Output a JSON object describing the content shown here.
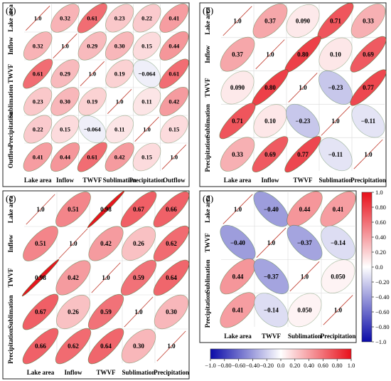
{
  "chart_data": [
    {
      "type": "heatmap",
      "panel": "(a)",
      "variables": [
        "Lake area",
        "Inflow",
        "TWVF",
        "Sublimation",
        "Precipitation",
        "Outflow"
      ],
      "matrix": [
        [
          1.0,
          0.32,
          0.61,
          0.23,
          0.22,
          0.41
        ],
        [
          0.32,
          1.0,
          0.29,
          0.3,
          0.15,
          0.44
        ],
        [
          0.61,
          0.29,
          1.0,
          0.19,
          -0.064,
          0.61
        ],
        [
          0.23,
          0.3,
          0.19,
          1.0,
          0.11,
          0.42
        ],
        [
          0.22,
          0.15,
          -0.064,
          0.11,
          1.0,
          0.15
        ],
        [
          0.41,
          0.44,
          0.61,
          0.42,
          0.15,
          1.0
        ]
      ],
      "labels": [
        [
          "1.0",
          "0.32",
          "0.61",
          "0.23",
          "0.22",
          "0.41"
        ],
        [
          "0.32",
          "1.0",
          "0.29",
          "0.30",
          "0.15",
          "0.44"
        ],
        [
          "0.61",
          "0.29",
          "1.0",
          "0.19",
          "−0.064",
          "0.61"
        ],
        [
          "0.23",
          "0.30",
          "0.19",
          "1.0",
          "0.11",
          "0.42"
        ],
        [
          "0.22",
          "0.15",
          "−0.064",
          "0.11",
          "1.0",
          "0.15"
        ],
        [
          "0.41",
          "0.44",
          "0.61",
          "0.42",
          "0.15",
          "1.0"
        ]
      ],
      "diagonal_style": "line"
    },
    {
      "type": "heatmap",
      "panel": "(b)",
      "variables": [
        "Lake area",
        "Inflow",
        "TWVF",
        "Sublimation",
        "Precipitation"
      ],
      "matrix": [
        [
          1.0,
          0.37,
          0.09,
          0.71,
          0.33
        ],
        [
          0.37,
          1.0,
          0.8,
          0.1,
          0.69
        ],
        [
          0.09,
          0.8,
          1.0,
          -0.23,
          0.77
        ],
        [
          0.71,
          0.1,
          -0.23,
          1.0,
          -0.11
        ],
        [
          0.33,
          0.69,
          0.77,
          -0.11,
          1.0
        ]
      ],
      "labels": [
        [
          "1.0",
          "0.37",
          "0.090",
          "0.71",
          "0.33"
        ],
        [
          "0.37",
          "1.0",
          "0.80",
          "0.10",
          "0.69"
        ],
        [
          "0.090",
          "0.80",
          "1.0",
          "−0.23",
          "0.77"
        ],
        [
          "0.71",
          "0.10",
          "−0.23",
          "1.0",
          "−0.11"
        ],
        [
          "0.33",
          "0.69",
          "0.77",
          "−0.11",
          "1.0"
        ]
      ],
      "diagonal_style": "line"
    },
    {
      "type": "heatmap",
      "panel": "(c)",
      "variables": [
        "Lake area",
        "Inflow",
        "TWVF",
        "Sublimation",
        "Precipitation"
      ],
      "matrix": [
        [
          1.0,
          0.51,
          0.98,
          0.67,
          0.66
        ],
        [
          0.51,
          1.0,
          0.42,
          0.26,
          0.62
        ],
        [
          0.98,
          0.42,
          1.0,
          0.59,
          0.64
        ],
        [
          0.67,
          0.26,
          0.59,
          1.0,
          0.3
        ],
        [
          0.66,
          0.62,
          0.64,
          0.3,
          1.0
        ]
      ],
      "labels": [
        [
          "1.0",
          "0.51",
          "0.98",
          "0.67",
          "0.66"
        ],
        [
          "0.51",
          "1.0",
          "0.42",
          "0.26",
          "0.62"
        ],
        [
          "0.98",
          "0.42",
          "1.0",
          "0.59",
          "0.64"
        ],
        [
          "0.67",
          "0.26",
          "0.59",
          "1.0",
          "0.30"
        ],
        [
          "0.66",
          "0.62",
          "0.64",
          "0.30",
          "1.0"
        ]
      ],
      "diagonal_style": "line"
    },
    {
      "type": "heatmap",
      "panel": "(d)",
      "variables": [
        "Lake area",
        "TWVF",
        "Sublimation",
        "Precipitation"
      ],
      "matrix": [
        [
          1.0,
          -0.4,
          0.44,
          0.41
        ],
        [
          -0.4,
          1.0,
          -0.37,
          -0.14
        ],
        [
          0.44,
          -0.37,
          1.0,
          0.05
        ],
        [
          0.41,
          -0.14,
          0.05,
          1.0
        ]
      ],
      "labels": [
        [
          "1.0",
          "−0.40",
          "0.44",
          "0.41"
        ],
        [
          "−0.40",
          "1.0",
          "−0.37",
          "−0.14"
        ],
        [
          "0.44",
          "−0.37",
          "1.0",
          "0.050"
        ],
        [
          "0.41",
          "−0.14",
          "0.050",
          "1.0"
        ]
      ],
      "diagonal_style": "line"
    }
  ],
  "colorbars": [
    {
      "orientation": "vertical",
      "range": [
        -1.0,
        1.0
      ],
      "ticks": [
        "1.0",
        "0.80",
        "0.60",
        "0.40",
        "0.20",
        "0.0",
        "−0.20",
        "−0.40",
        "−0.60",
        "−0.80",
        "−1.0"
      ]
    },
    {
      "orientation": "horizontal",
      "range": [
        -1.0,
        1.0
      ],
      "ticks": [
        "−1.0",
        "−0.80",
        "−0.60",
        "−0.40",
        "−0.20",
        "0.0",
        "0.20",
        "0.40",
        "0.60",
        "0.80",
        "1.0"
      ]
    }
  ],
  "colors": {
    "negative": "#0a0aa8",
    "neutral": "#ffffff",
    "positive": "#e8101a",
    "ellipse_edge": "#3a6e2f",
    "diagonal_line": "#c0392b"
  }
}
